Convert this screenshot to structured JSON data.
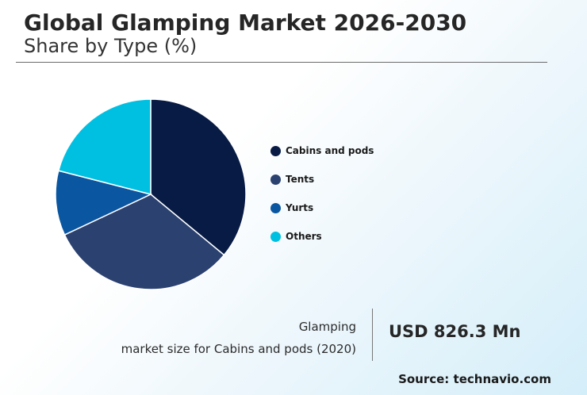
{
  "header": {
    "title": "Global Glamping Market 2026-2030",
    "subtitle": "Share by Type (%)"
  },
  "chart_data": {
    "type": "pie",
    "categories": [
      "Cabins and pods",
      "Tents",
      "Yurts",
      "Others"
    ],
    "values": [
      36,
      32,
      11,
      21
    ],
    "colors": [
      "#071b44",
      "#2b4170",
      "#0b56a0",
      "#00c0e2"
    ],
    "legend_position": "right"
  },
  "stat": {
    "label_line1": "Glamping",
    "label_line2": "market size for Cabins and pods (2020)",
    "value": "USD 826.3 Mn"
  },
  "source": "Source: technavio.com"
}
